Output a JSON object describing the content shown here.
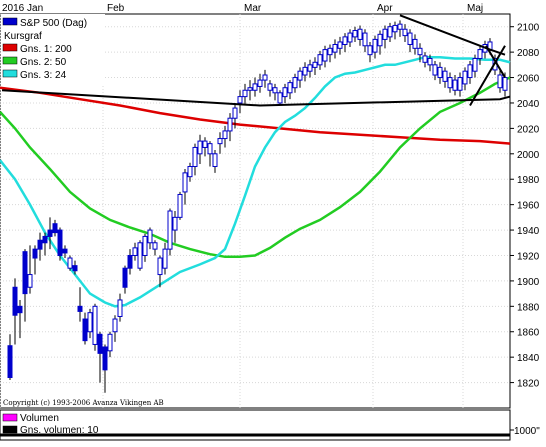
{
  "chart_data": {
    "type": "candlestick",
    "x_axis": {
      "year_label": "2016",
      "months": [
        "Jan",
        "Feb",
        "Mar",
        "Apr",
        "Maj"
      ]
    },
    "y_axis": {
      "ylim": [
        1800,
        2110
      ],
      "ticks": [
        1820,
        1840,
        1860,
        1880,
        1900,
        1920,
        1940,
        1960,
        1980,
        2000,
        2020,
        2040,
        2060,
        2080,
        2100
      ]
    },
    "legend": {
      "entries": [
        {
          "label": "S&P 500 (Dag)",
          "color": "#0000cc"
        },
        {
          "label": "Kursgraf",
          "color": ""
        },
        {
          "label": "Gns. 1: 200",
          "color": "#dd0000"
        },
        {
          "label": "Gns. 2: 50",
          "color": "#22cc22"
        },
        {
          "label": "Gns. 3: 24",
          "color": "#22dddd"
        }
      ]
    },
    "series": [
      {
        "name": "Gns. 1: 200",
        "color": "#dd0000",
        "points": [
          [
            0,
            2052
          ],
          [
            40,
            2048
          ],
          [
            80,
            2043
          ],
          [
            120,
            2038
          ],
          [
            160,
            2032
          ],
          [
            200,
            2027
          ],
          [
            240,
            2023
          ],
          [
            280,
            2020
          ],
          [
            320,
            2017
          ],
          [
            360,
            2015
          ],
          [
            400,
            2013
          ],
          [
            440,
            2011
          ],
          [
            480,
            2010
          ],
          [
            510,
            2008
          ]
        ]
      },
      {
        "name": "Gns. 2: 50",
        "color": "#22cc22",
        "points": [
          [
            0,
            2033
          ],
          [
            15,
            2020
          ],
          [
            30,
            2005
          ],
          [
            50,
            1988
          ],
          [
            70,
            1970
          ],
          [
            90,
            1957
          ],
          [
            110,
            1948
          ],
          [
            130,
            1942
          ],
          [
            150,
            1937
          ],
          [
            170,
            1930
          ],
          [
            190,
            1925
          ],
          [
            210,
            1921
          ],
          [
            225,
            1919
          ],
          [
            240,
            1919
          ],
          [
            255,
            1920
          ],
          [
            270,
            1926
          ],
          [
            285,
            1934
          ],
          [
            300,
            1941
          ],
          [
            320,
            1948
          ],
          [
            340,
            1958
          ],
          [
            360,
            1970
          ],
          [
            380,
            1986
          ],
          [
            400,
            2005
          ],
          [
            420,
            2020
          ],
          [
            440,
            2033
          ],
          [
            460,
            2040
          ],
          [
            480,
            2048
          ],
          [
            495,
            2055
          ],
          [
            510,
            2060
          ]
        ]
      },
      {
        "name": "Gns. 3: 24",
        "color": "#22dddd",
        "points": [
          [
            0,
            1995
          ],
          [
            15,
            1980
          ],
          [
            30,
            1960
          ],
          [
            45,
            1938
          ],
          [
            60,
            1920
          ],
          [
            75,
            1905
          ],
          [
            90,
            1890
          ],
          [
            105,
            1883
          ],
          [
            115,
            1880
          ],
          [
            125,
            1881
          ],
          [
            140,
            1887
          ],
          [
            160,
            1897
          ],
          [
            180,
            1907
          ],
          [
            200,
            1913
          ],
          [
            215,
            1918
          ],
          [
            225,
            1925
          ],
          [
            235,
            1945
          ],
          [
            245,
            1967
          ],
          [
            255,
            1990
          ],
          [
            265,
            2005
          ],
          [
            275,
            2017
          ],
          [
            285,
            2025
          ],
          [
            295,
            2030
          ],
          [
            305,
            2036
          ],
          [
            315,
            2044
          ],
          [
            325,
            2053
          ],
          [
            335,
            2060
          ],
          [
            345,
            2063
          ],
          [
            355,
            2064
          ],
          [
            365,
            2066
          ],
          [
            375,
            2068
          ],
          [
            385,
            2070
          ],
          [
            395,
            2070
          ],
          [
            405,
            2072
          ],
          [
            415,
            2074
          ],
          [
            425,
            2076
          ],
          [
            440,
            2076
          ],
          [
            455,
            2075
          ],
          [
            470,
            2075
          ],
          [
            485,
            2074
          ],
          [
            500,
            2074
          ],
          [
            510,
            2072
          ]
        ]
      }
    ],
    "trendlines": [
      {
        "color": "#000000",
        "points": [
          [
            2,
            2050
          ],
          [
            260,
            2038
          ],
          [
            500,
            2043
          ],
          [
            510,
            2045
          ]
        ]
      },
      {
        "color": "#000000",
        "points": [
          [
            400,
            2109
          ],
          [
            490,
            2082
          ],
          [
            505,
            2078
          ]
        ]
      },
      {
        "color": "#000000",
        "points": [
          [
            470,
            2038
          ],
          [
            505,
            2085
          ]
        ]
      },
      {
        "color": "#000000",
        "points": [
          [
            486,
            2085
          ],
          [
            505,
            2060
          ]
        ]
      }
    ],
    "candles": [
      [
        10,
        1822,
        1849,
        1824,
        1858
      ],
      [
        15,
        1850,
        1895,
        1873,
        1902
      ],
      [
        20,
        1855,
        1880,
        1875,
        1885
      ],
      [
        25,
        1868,
        1923,
        1890,
        1925
      ],
      [
        30,
        1890,
        1895,
        1905,
        1928
      ],
      [
        35,
        1905,
        1925,
        1918,
        1928
      ],
      [
        40,
        1916,
        1932,
        1925,
        1938
      ],
      [
        45,
        1920,
        1935,
        1930,
        1938
      ],
      [
        50,
        1925,
        1940,
        1935,
        1950
      ],
      [
        55,
        1935,
        1945,
        1938,
        1948
      ],
      [
        60,
        1916,
        1940,
        1920,
        1942
      ],
      [
        65,
        1918,
        1925,
        1922,
        1928
      ],
      [
        70,
        1908,
        1910,
        1918,
        1920
      ],
      [
        75,
        1905,
        1912,
        1908,
        1916
      ],
      [
        80,
        1868,
        1880,
        1876,
        1895
      ],
      [
        85,
        1850,
        1870,
        1853,
        1875
      ],
      [
        90,
        1855,
        1860,
        1875,
        1878
      ],
      [
        95,
        1845,
        1850,
        1880,
        1882
      ],
      [
        100,
        1820,
        1858,
        1843,
        1860
      ],
      [
        105,
        1812,
        1848,
        1830,
        1850
      ],
      [
        110,
        1840,
        1845,
        1858,
        1860
      ],
      [
        115,
        1852,
        1860,
        1870,
        1873
      ],
      [
        120,
        1868,
        1872,
        1885,
        1890
      ],
      [
        125,
        1890,
        1910,
        1895,
        1912
      ],
      [
        130,
        1905,
        1920,
        1910,
        1925
      ],
      [
        135,
        1916,
        1920,
        1926,
        1930
      ],
      [
        140,
        1908,
        1910,
        1930,
        1932
      ],
      [
        145,
        1915,
        1920,
        1935,
        1937
      ],
      [
        150,
        1925,
        1930,
        1940,
        1942
      ],
      [
        155,
        1920,
        1925,
        1930,
        1932
      ],
      [
        160,
        1895,
        1905,
        1918,
        1920
      ],
      [
        165,
        1905,
        1910,
        1925,
        1930
      ],
      [
        170,
        1920,
        1925,
        1955,
        1957
      ],
      [
        175,
        1930,
        1940,
        1950,
        1955
      ],
      [
        180,
        1948,
        1950,
        1968,
        1970
      ],
      [
        185,
        1960,
        1970,
        1985,
        1988
      ],
      [
        190,
        1978,
        1982,
        1990,
        1993
      ],
      [
        195,
        1983,
        1990,
        2005,
        2008
      ],
      [
        200,
        1992,
        2000,
        2010,
        2015
      ],
      [
        205,
        1998,
        2005,
        2010,
        2013
      ],
      [
        210,
        1990,
        2000,
        2008,
        2010
      ],
      [
        215,
        1985,
        1990,
        2000,
        2003
      ],
      [
        220,
        2000,
        2008,
        2012,
        2017
      ],
      [
        225,
        2005,
        2012,
        2018,
        2022
      ],
      [
        230,
        2010,
        2018,
        2028,
        2032
      ],
      [
        235,
        2020,
        2028,
        2036,
        2040
      ],
      [
        240,
        2032,
        2040,
        2045,
        2050
      ],
      [
        245,
        2038,
        2045,
        2050,
        2055
      ],
      [
        250,
        2042,
        2050,
        2052,
        2058
      ],
      [
        255,
        2045,
        2050,
        2055,
        2060
      ],
      [
        260,
        2048,
        2053,
        2058,
        2063
      ],
      [
        265,
        2052,
        2058,
        2062,
        2066
      ],
      [
        270,
        2045,
        2050,
        2055,
        2058
      ],
      [
        275,
        2042,
        2048,
        2052,
        2055
      ],
      [
        280,
        2038,
        2040,
        2048,
        2050
      ],
      [
        285,
        2040,
        2045,
        2052,
        2055
      ],
      [
        290,
        2043,
        2048,
        2056,
        2058
      ],
      [
        295,
        2048,
        2052,
        2060,
        2063
      ],
      [
        300,
        2052,
        2058,
        2065,
        2068
      ],
      [
        305,
        2057,
        2062,
        2068,
        2072
      ],
      [
        310,
        2060,
        2065,
        2070,
        2074
      ],
      [
        315,
        2062,
        2068,
        2072,
        2076
      ],
      [
        320,
        2066,
        2070,
        2078,
        2081
      ],
      [
        325,
        2068,
        2073,
        2082,
        2085
      ],
      [
        330,
        2072,
        2078,
        2083,
        2086
      ],
      [
        335,
        2075,
        2080,
        2086,
        2090
      ],
      [
        340,
        2078,
        2083,
        2088,
        2092
      ],
      [
        345,
        2080,
        2086,
        2092,
        2095
      ],
      [
        350,
        2084,
        2088,
        2095,
        2098
      ],
      [
        355,
        2088,
        2092,
        2097,
        2100
      ],
      [
        360,
        2085,
        2090,
        2098,
        2101
      ],
      [
        365,
        2080,
        2085,
        2095,
        2098
      ],
      [
        370,
        2072,
        2078,
        2085,
        2088
      ],
      [
        375,
        2075,
        2080,
        2090,
        2093
      ],
      [
        380,
        2078,
        2085,
        2094,
        2097
      ],
      [
        385,
        2083,
        2090,
        2098,
        2101
      ],
      [
        390,
        2088,
        2092,
        2100,
        2103
      ],
      [
        395,
        2090,
        2096,
        2101,
        2104
      ],
      [
        400,
        2092,
        2098,
        2102,
        2105
      ],
      [
        405,
        2088,
        2093,
        2098,
        2102
      ],
      [
        410,
        2080,
        2086,
        2095,
        2098
      ],
      [
        415,
        2078,
        2083,
        2090,
        2094
      ],
      [
        420,
        2072,
        2078,
        2083,
        2087
      ],
      [
        425,
        2068,
        2072,
        2077,
        2080
      ],
      [
        430,
        2065,
        2070,
        2075,
        2078
      ],
      [
        435,
        2058,
        2062,
        2070,
        2073
      ],
      [
        440,
        2055,
        2060,
        2068,
        2072
      ],
      [
        445,
        2052,
        2057,
        2065,
        2068
      ],
      [
        450,
        2048,
        2052,
        2060,
        2064
      ],
      [
        455,
        2046,
        2050,
        2058,
        2062
      ],
      [
        460,
        2045,
        2050,
        2060,
        2064
      ],
      [
        465,
        2050,
        2055,
        2065,
        2068
      ],
      [
        470,
        2055,
        2060,
        2070,
        2073
      ],
      [
        475,
        2060,
        2065,
        2075,
        2078
      ],
      [
        480,
        2070,
        2075,
        2082,
        2085
      ],
      [
        485,
        2075,
        2080,
        2086,
        2089
      ],
      [
        490,
        2078,
        2082,
        2088,
        2091
      ],
      [
        495,
        2062,
        2066,
        2075,
        2078
      ],
      [
        500,
        2048,
        2052,
        2062,
        2066
      ],
      [
        505,
        2045,
        2050,
        2060,
        2064
      ]
    ],
    "volume": {
      "legend": [
        {
          "label": "Volumen",
          "color": "#ff00ff"
        },
        {
          "label": "Gns. volumen: 10",
          "color": "#000000"
        }
      ],
      "ytick": "1000\""
    },
    "copyright": "Copyright (c) 1993-2006 Avanza Vikingen AB"
  }
}
